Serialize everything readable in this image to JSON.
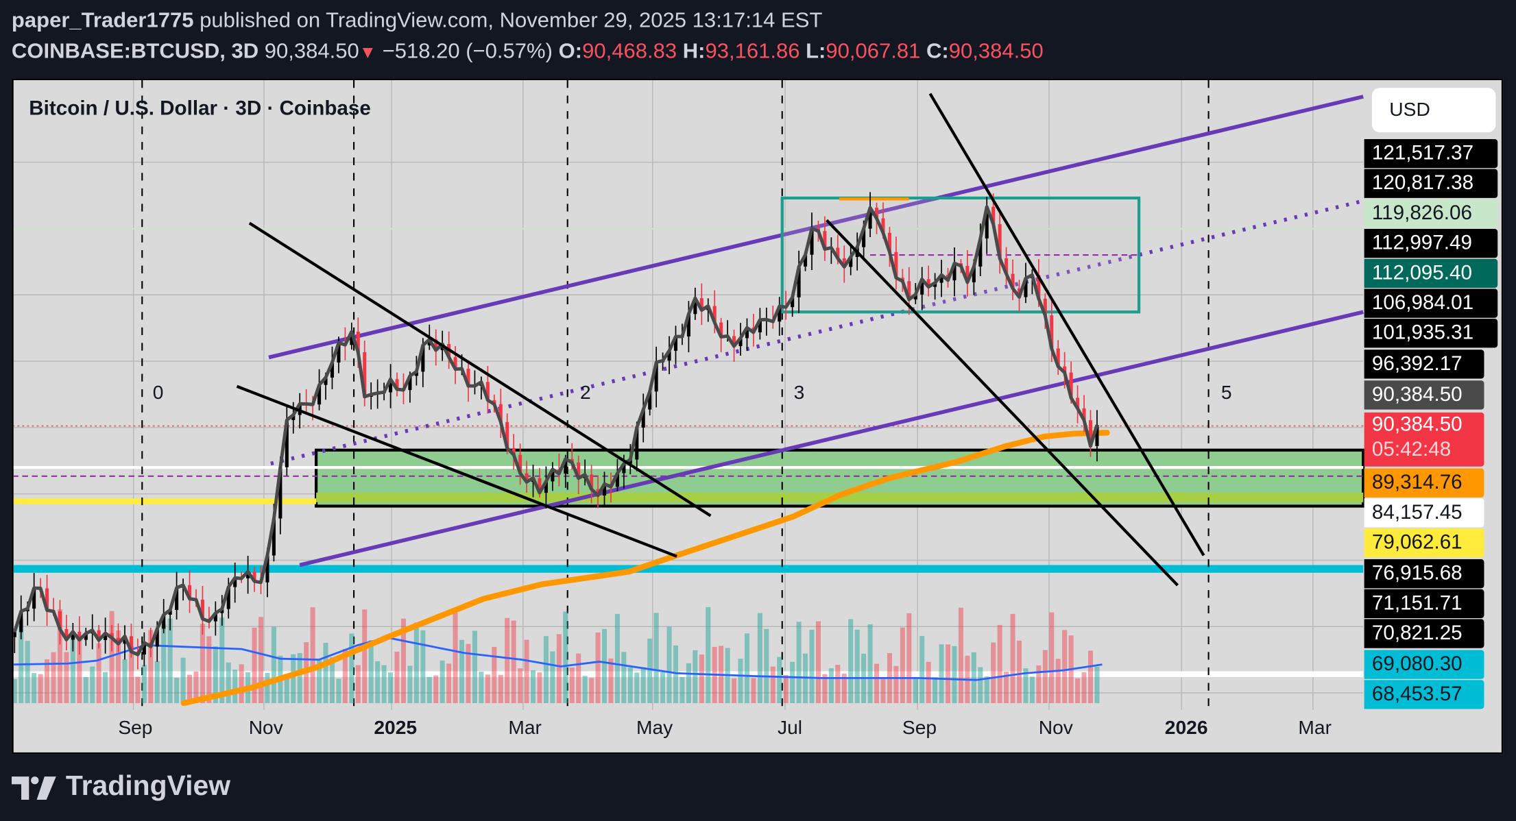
{
  "header": {
    "author": "paper_Trader1775",
    "published": "published on TradingView.com, November 29, 2025 13:17:14 EST",
    "symbol": "COINBASE:BTCUSD, 3D",
    "last": "90,384.50",
    "change_icon": "triangle-down",
    "change": "−518.20 (−0.57%)",
    "o_label": "O:",
    "o": "90,468.83",
    "h_label": "H:",
    "h": "93,161.86",
    "l_label": "L:",
    "l": "90,067.81",
    "c_label": "C:",
    "c": "90,384.50"
  },
  "legend": "Bitcoin / U.S. Dollar · 3D · Coinbase",
  "currency": "USD",
  "wave_labels": [
    "0",
    "2",
    "3",
    "5"
  ],
  "price_labels": [
    {
      "text": "121,517.37",
      "bg": "#000000",
      "fg": "#ffffff"
    },
    {
      "text": "120,817.38",
      "bg": "#000000",
      "fg": "#ffffff"
    },
    {
      "text": "119,826.06",
      "bg": "#c8e6c9",
      "fg": "#131722"
    },
    {
      "text": "112,997.49",
      "bg": "#000000",
      "fg": "#ffffff"
    },
    {
      "text": "112,095.40",
      "bg": "#00695c",
      "fg": "#ffffff"
    },
    {
      "text": "106,984.01",
      "bg": "#000000",
      "fg": "#ffffff"
    },
    {
      "text": "101,935.31",
      "bg": "#000000",
      "fg": "#ffffff"
    },
    {
      "text": "96,392.17",
      "bg": "#000000",
      "fg": "#ffffff"
    },
    {
      "text": "90,384.50",
      "bg": "#4a4a4a",
      "fg": "#ffffff"
    },
    {
      "text": "90,384.50",
      "sub": "05:42:48",
      "bg": "#f23645",
      "fg": "#ffffff"
    },
    {
      "text": "89,314.76",
      "bg": "#ff9800",
      "fg": "#131722"
    },
    {
      "text": "84,157.45",
      "bg": "#ffffff",
      "fg": "#131722"
    },
    {
      "text": "79,062.61",
      "bg": "#ffeb3b",
      "fg": "#131722"
    },
    {
      "text": "76,915.68",
      "bg": "#000000",
      "fg": "#ffffff"
    },
    {
      "text": "71,151.71",
      "bg": "#000000",
      "fg": "#ffffff"
    },
    {
      "text": "70,821.25",
      "bg": "#000000",
      "fg": "#ffffff"
    },
    {
      "text": "69,080.30",
      "bg": "#00bcd4",
      "fg": "#131722"
    },
    {
      "text": "68,453.57",
      "bg": "#00bcd4",
      "fg": "#131722"
    }
  ],
  "time_labels": [
    "Sep",
    "Nov",
    "2025",
    "Mar",
    "May",
    "Jul",
    "Sep",
    "Nov",
    "2026",
    "Mar"
  ],
  "brand": "TradingView",
  "chart_data": {
    "type": "candlestick",
    "title": "Bitcoin / U.S. Dollar · 3D · Coinbase",
    "interval": "3D",
    "y_axis": "USD",
    "colors": {
      "up": "#000000",
      "down": "#f23645",
      "close_line": "#4a4a4a",
      "ma": "#ff9800",
      "volume_ma": "#2962ff",
      "channel": "#673ab7",
      "box": "#1a9e8f",
      "zone": "#8fcc8f"
    },
    "approx_close": [
      [
        "2024-07-08",
        58400
      ],
      [
        "2024-07-19",
        67000
      ],
      [
        "2024-08-02",
        57000
      ],
      [
        "2024-08-15",
        60000
      ],
      [
        "2024-09-02",
        55500
      ],
      [
        "2024-09-24",
        65600
      ],
      [
        "2024-10-08",
        61000
      ],
      [
        "2024-10-21",
        67800
      ],
      [
        "2024-11-01",
        68000
      ],
      [
        "2024-11-12",
        91800
      ],
      [
        "2024-11-26",
        96000
      ],
      [
        "2024-12-12",
        105000
      ],
      [
        "2024-12-18",
        94700
      ],
      [
        "2025-01-05",
        96000
      ],
      [
        "2025-01-14",
        103500
      ],
      [
        "2025-01-23",
        100600
      ],
      [
        "2025-02-10",
        96000
      ],
      [
        "2025-02-23",
        86000
      ],
      [
        "2025-03-09",
        80000
      ],
      [
        "2025-03-22",
        86000
      ],
      [
        "2025-04-05",
        78700
      ],
      [
        "2025-04-18",
        86000
      ],
      [
        "2025-05-02",
        99000
      ],
      [
        "2025-05-19",
        109000
      ],
      [
        "2025-06-02",
        103500
      ],
      [
        "2025-06-20",
        105000
      ],
      [
        "2025-07-03",
        110700
      ],
      [
        "2025-07-12",
        119000
      ],
      [
        "2025-07-30",
        115000
      ],
      [
        "2025-08-10",
        123000
      ],
      [
        "2025-08-26",
        109000
      ],
      [
        "2025-09-17",
        115000
      ],
      [
        "2025-09-24",
        110700
      ],
      [
        "2025-10-01",
        124000
      ],
      [
        "2025-10-14",
        109000
      ],
      [
        "2025-10-23",
        112700
      ],
      [
        "2025-11-01",
        102000
      ],
      [
        "2025-11-12",
        91800
      ],
      [
        "2025-11-19",
        87500
      ],
      [
        "2025-11-23",
        90384.5
      ]
    ],
    "horizontal_levels": [
      119826.06,
      89314.76,
      84157.45,
      79062.61,
      69080.3
    ],
    "last_ohlc": {
      "open": 90468.83,
      "high": 93161.86,
      "low": 90067.81,
      "close": 90384.5
    }
  }
}
